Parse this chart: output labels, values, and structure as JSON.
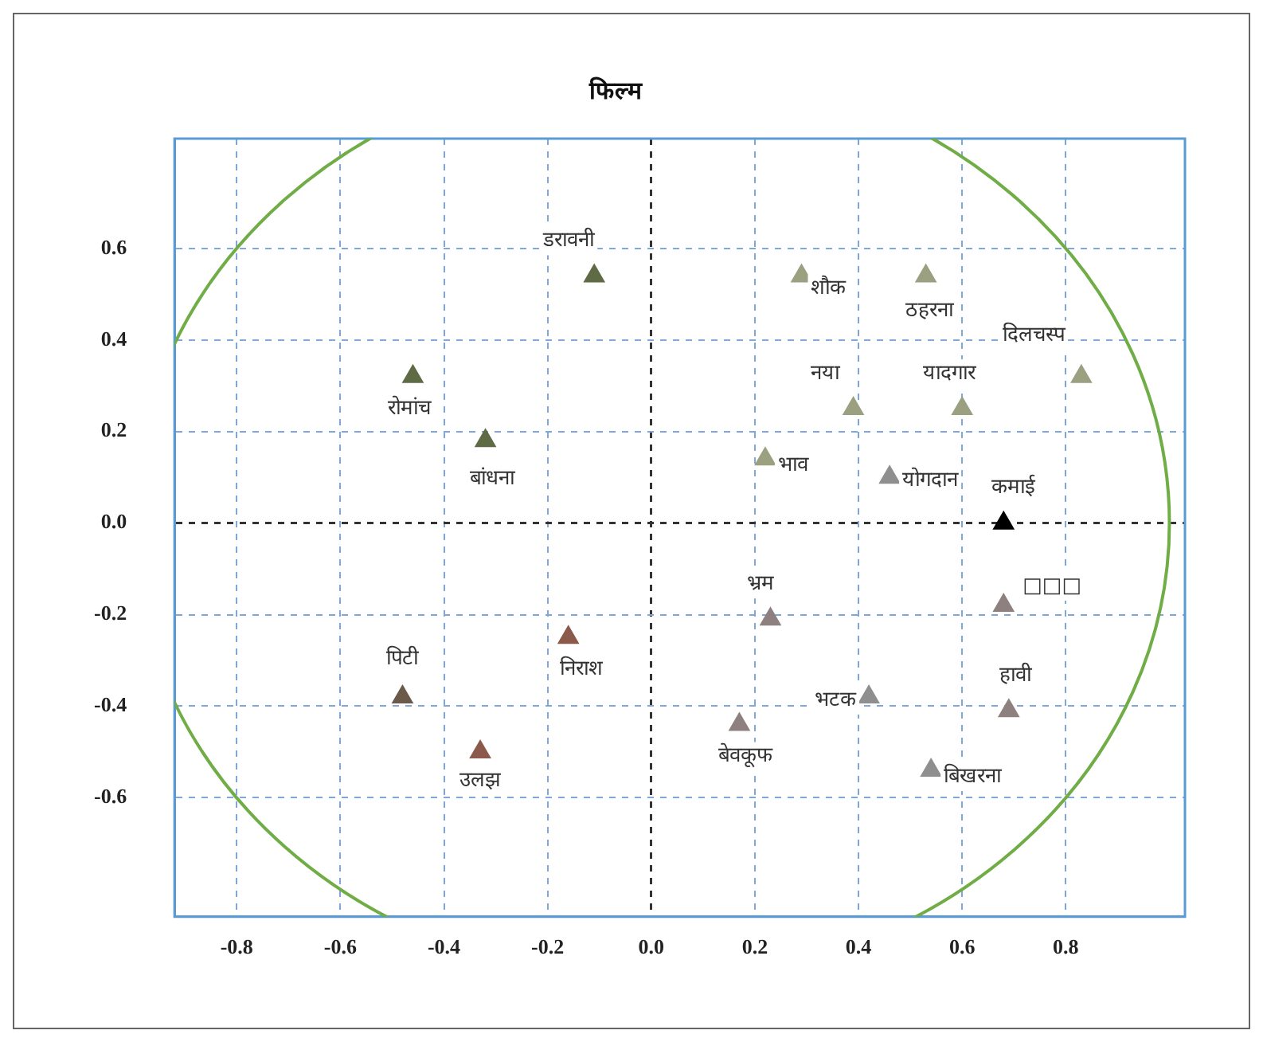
{
  "chart_data": {
    "type": "scatter",
    "title": "फिल्म",
    "series": [
      {
        "name": "डरावनी",
        "color": "#5f6b45",
        "x": [
          -0.11
        ],
        "values": [
          0.54
        ]
      },
      {
        "name": "रोमांच",
        "color": "#5f6b45",
        "x": [
          -0.46
        ],
        "values": [
          0.32
        ]
      },
      {
        "name": "बांधना",
        "color": "#5f6b45",
        "x": [
          -0.32
        ],
        "values": [
          0.18
        ]
      },
      {
        "name": "शौक",
        "color": "#9aa080",
        "x": [
          0.29
        ],
        "values": [
          0.54
        ]
      },
      {
        "name": "ठहरना",
        "color": "#9aa080",
        "x": [
          0.53
        ],
        "values": [
          0.54
        ]
      },
      {
        "name": "दिलचस्प",
        "color": "#9aa080",
        "x": [
          0.83
        ],
        "values": [
          0.32
        ]
      },
      {
        "name": "नया",
        "color": "#9aa080",
        "x": [
          0.39
        ],
        "values": [
          0.25
        ]
      },
      {
        "name": "यादगार",
        "color": "#9aa080",
        "x": [
          0.6
        ],
        "values": [
          0.25
        ]
      },
      {
        "name": "भाव",
        "color": "#9aa080",
        "x": [
          0.22
        ],
        "values": [
          0.14
        ]
      },
      {
        "name": "योगदान",
        "color": "#8f8f8f",
        "x": [
          0.46
        ],
        "values": [
          0.1
        ]
      },
      {
        "name": "कमाई",
        "color": "#000000",
        "x": [
          0.68
        ],
        "values": [
          0.0
        ]
      },
      {
        "name": "□□□",
        "color": "#8f8080",
        "x": [
          0.68
        ],
        "values": [
          -0.18
        ]
      },
      {
        "name": "भ्रम",
        "color": "#8f8080",
        "x": [
          0.23
        ],
        "values": [
          -0.21
        ]
      },
      {
        "name": "निराश",
        "color": "#8b5a4a",
        "x": [
          -0.16
        ],
        "values": [
          -0.25
        ]
      },
      {
        "name": "पिटी",
        "color": "#6b5a4a",
        "x": [
          -0.48
        ],
        "values": [
          -0.38
        ]
      },
      {
        "name": "भटक",
        "color": "#8f8f8f",
        "x": [
          0.42
        ],
        "values": [
          -0.38
        ]
      },
      {
        "name": "हावी",
        "color": "#8f8080",
        "x": [
          0.69
        ],
        "values": [
          -0.41
        ]
      },
      {
        "name": "बेवकूफ",
        "color": "#8f8080",
        "x": [
          0.17
        ],
        "values": [
          -0.44
        ]
      },
      {
        "name": "उलझ",
        "color": "#8b5a4a",
        "x": [
          -0.33
        ],
        "values": [
          -0.5
        ]
      },
      {
        "name": "बिखरना",
        "color": "#8f8f8f",
        "x": [
          0.54
        ],
        "values": [
          -0.54
        ]
      }
    ],
    "xlim": [
      -0.92,
      1.03
    ],
    "ylim": [
      -0.86,
      0.84
    ],
    "xticks": [
      -0.8,
      -0.6,
      -0.4,
      -0.2,
      {
        "value": 0,
        "label": "0.0"
      },
      0.2,
      0.4,
      0.6,
      0.8
    ],
    "yticks": [
      -0.6,
      -0.4,
      -0.2,
      {
        "value": 0,
        "label": "0.0"
      },
      0.2,
      0.4,
      0.6
    ],
    "grid": true,
    "legend": false,
    "marker": "triangle"
  }
}
